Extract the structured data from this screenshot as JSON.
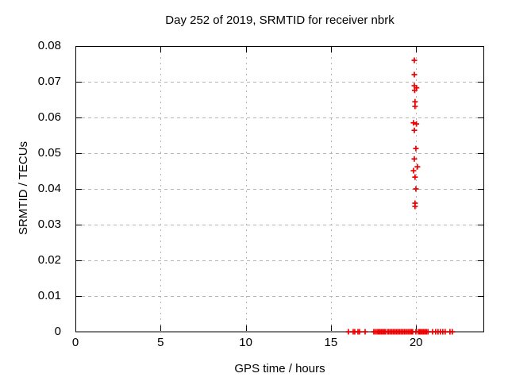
{
  "title": "Day 252 of 2019, SRMTID for receiver nbrk",
  "colors": {
    "marker": "#ee0000",
    "grid": "#b3b3b3",
    "axis": "#000000",
    "background": "#ffffff",
    "text": "#000000"
  },
  "chart_data": {
    "type": "scatter",
    "title": "Day 252 of 2019, SRMTID for receiver nbrk",
    "xlabel": "GPS time / hours",
    "ylabel": "SRMTID / TECUs",
    "xlim": [
      0,
      24
    ],
    "ylim": [
      0,
      0.08
    ],
    "grid": true,
    "legend": "none",
    "marker": "plus",
    "xticks": {
      "values": [
        0,
        5,
        10,
        15,
        20
      ],
      "labels": [
        "0",
        "5",
        "10",
        "15",
        "20"
      ]
    },
    "yticks": {
      "values": [
        0,
        0.01,
        0.02,
        0.03,
        0.04,
        0.05,
        0.06,
        0.07,
        0.08
      ],
      "labels": [
        "0",
        "0.01",
        "0.02",
        "0.03",
        "0.04",
        "0.05",
        "0.06",
        "0.07",
        "0.08"
      ]
    },
    "series": [
      {
        "name": "SRMTID",
        "color": "#ee0000",
        "points": [
          [
            19.9,
            0.076
          ],
          [
            19.9,
            0.072
          ],
          [
            19.9,
            0.0689
          ],
          [
            20.03,
            0.0683
          ],
          [
            19.92,
            0.0676
          ],
          [
            19.94,
            0.0644
          ],
          [
            19.94,
            0.0631
          ],
          [
            19.85,
            0.0585
          ],
          [
            20.02,
            0.0582
          ],
          [
            19.9,
            0.0564
          ],
          [
            19.99,
            0.0513
          ],
          [
            19.9,
            0.0484
          ],
          [
            20.08,
            0.0462
          ],
          [
            19.85,
            0.0451
          ],
          [
            19.94,
            0.0433
          ],
          [
            19.99,
            0.04
          ],
          [
            19.94,
            0.036
          ],
          [
            19.94,
            0.0351
          ],
          [
            16.03,
            0
          ],
          [
            16.31,
            0
          ],
          [
            16.4,
            0
          ],
          [
            16.59,
            0
          ],
          [
            16.68,
            0
          ],
          [
            17.01,
            0
          ],
          [
            17.52,
            0
          ],
          [
            17.61,
            0
          ],
          [
            17.71,
            0
          ],
          [
            17.79,
            0
          ],
          [
            17.87,
            0
          ],
          [
            17.95,
            0
          ],
          [
            18.03,
            0
          ],
          [
            18.11,
            0
          ],
          [
            18.19,
            0
          ],
          [
            18.31,
            0
          ],
          [
            18.4,
            0
          ],
          [
            18.49,
            0
          ],
          [
            18.58,
            0
          ],
          [
            18.67,
            0
          ],
          [
            18.76,
            0
          ],
          [
            18.85,
            0
          ],
          [
            18.94,
            0
          ],
          [
            19.03,
            0
          ],
          [
            19.12,
            0
          ],
          [
            19.21,
            0
          ],
          [
            19.3,
            0
          ],
          [
            19.39,
            0
          ],
          [
            19.48,
            0
          ],
          [
            19.57,
            0
          ],
          [
            19.66,
            0
          ],
          [
            19.74,
            0
          ],
          [
            19.8,
            0
          ],
          [
            19.99,
            0
          ],
          [
            20.13,
            0
          ],
          [
            20.21,
            0
          ],
          [
            20.29,
            0
          ],
          [
            20.37,
            0
          ],
          [
            20.45,
            0
          ],
          [
            20.53,
            0
          ],
          [
            20.61,
            0
          ],
          [
            20.7,
            0
          ],
          [
            20.97,
            0
          ],
          [
            21.15,
            0
          ],
          [
            21.29,
            0
          ],
          [
            21.43,
            0
          ],
          [
            21.57,
            0
          ],
          [
            21.71,
            0
          ],
          [
            21.99,
            0
          ],
          [
            22.13,
            0
          ]
        ]
      }
    ]
  }
}
